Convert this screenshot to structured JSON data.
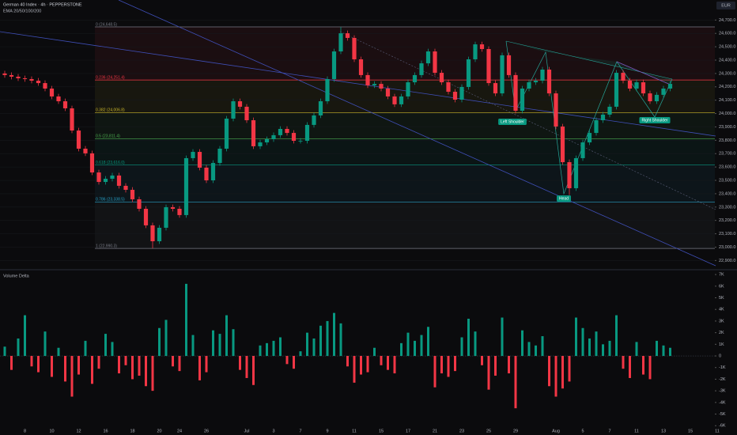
{
  "chart_data": [
    {
      "type": "candlestick",
      "title": "German 40 Index · 4h · PEPPERSTONE",
      "subtitle": "EMA 20/50/100/200",
      "currency": "EUR",
      "up_color": "#089981",
      "down_color": "#f23645",
      "grid": true,
      "ylim": [
        22837,
        24850
      ],
      "yticks": [
        {
          "value": 24700,
          "label": "24,700.0"
        },
        {
          "value": 24600,
          "label": "24,600.0"
        },
        {
          "value": 24500,
          "label": "24,500.0"
        },
        {
          "value": 24400,
          "label": "24,400.0"
        },
        {
          "value": 24300,
          "label": "24,300.0"
        },
        {
          "value": 24200,
          "label": "24,200.0"
        },
        {
          "value": 24100,
          "label": "24,100.0"
        },
        {
          "value": 24000,
          "label": "24,000.0"
        },
        {
          "value": 23900,
          "label": "23,900.0"
        },
        {
          "value": 23800,
          "label": "23,800.0"
        },
        {
          "value": 23700,
          "label": "23,700.0"
        },
        {
          "value": 23600,
          "label": "23,600.0"
        },
        {
          "value": 23500,
          "label": "23,500.0"
        },
        {
          "value": 23400,
          "label": "23,400.0"
        },
        {
          "value": 23300,
          "label": "23,300.0"
        },
        {
          "value": 23200,
          "label": "23,200.0"
        },
        {
          "value": 23100,
          "label": "23,100.0"
        },
        {
          "value": 23000,
          "label": "23,000.0"
        },
        {
          "value": 22900,
          "label": "22,900.0"
        }
      ],
      "fib_levels": [
        {
          "label": "0 (24,648.5)",
          "value": 24648.5,
          "color": "#787b86"
        },
        {
          "label": "0.236 (24,251.4)",
          "value": 24251.4,
          "color": "#f23645"
        },
        {
          "label": "0.382 (24,006.8)",
          "value": 24006.8,
          "color": "#c9b52a"
        },
        {
          "label": "0.5 (23,811.4)",
          "value": 23811.4,
          "color": "#4caf50"
        },
        {
          "label": "0.618 (23,616.0)",
          "value": 23616.0,
          "color": "#089981"
        },
        {
          "label": "0.786 (23,338.5)",
          "value": 23338.5,
          "color": "#26a0c6"
        },
        {
          "label": "1 (22,990.3)",
          "value": 22990.3,
          "color": "#787b86"
        }
      ],
      "annotations": [
        "Left Shoulder",
        "Head",
        "Right Shoulder"
      ],
      "categories": [
        null,
        null,
        null,
        "8",
        null,
        null,
        null,
        "10",
        null,
        null,
        null,
        "12",
        null,
        null,
        null,
        "16",
        null,
        null,
        null,
        "18",
        null,
        null,
        null,
        "20",
        null,
        null,
        "24",
        null,
        null,
        null,
        "26",
        null,
        null,
        null,
        null,
        null,
        "Jul",
        null,
        null,
        null,
        "3",
        null,
        null,
        null,
        "7",
        null,
        null,
        null,
        "9",
        null,
        null,
        null,
        "11",
        null,
        null,
        null,
        "15",
        null,
        null,
        null,
        "17",
        null,
        null,
        null,
        "21",
        null,
        null,
        null,
        "23",
        null,
        null,
        null,
        "25",
        null,
        null,
        null,
        "29",
        null,
        null,
        null,
        null,
        null,
        "Aug",
        null,
        null,
        null,
        "5",
        null,
        null,
        null,
        "7",
        null,
        null,
        null,
        "11",
        null,
        null,
        null,
        "13",
        null,
        null,
        null,
        "15",
        null,
        null,
        null,
        "11"
      ],
      "open": [
        24300,
        24288,
        24276,
        24264,
        24258,
        24246,
        24228,
        24187,
        24128,
        24092,
        24039,
        23873,
        23737,
        23702,
        23559,
        23488,
        23512,
        23536,
        23459,
        23429,
        23358,
        23287,
        23163,
        23044,
        23145,
        23299,
        23287,
        23240,
        23666,
        23713,
        23595,
        23500,
        23630,
        23737,
        23962,
        24092,
        24051,
        23950,
        23755,
        23784,
        23808,
        23838,
        23885,
        23855,
        23796,
        23796,
        23915,
        23986,
        24092,
        24258,
        24465,
        24601,
        24566,
        24406,
        24288,
        24211,
        24222,
        24187,
        24128,
        24069,
        24128,
        24234,
        24288,
        24376,
        24465,
        24305,
        24234,
        24163,
        24104,
        24199,
        24406,
        24518,
        24483,
        24228,
        24151,
        24436,
        24288,
        24021,
        24187,
        24234,
        24246,
        24329,
        24151,
        23903,
        23636,
        23441,
        23666,
        23784,
        23855,
        23950,
        23992,
        24051,
        24305,
        24246,
        24187,
        24234,
        24151,
        24092,
        24140,
        24187,
        null,
        null,
        null,
        null,
        null,
        null,
        null
      ],
      "high": [
        24320,
        24308,
        24296,
        24284,
        24278,
        24266,
        24248,
        24207,
        24148,
        24112,
        24059,
        23893,
        23757,
        23722,
        23579,
        23532,
        23556,
        23556,
        23479,
        23449,
        23378,
        23307,
        23183,
        23165,
        23319,
        23319,
        23307,
        23686,
        23733,
        23733,
        23615,
        23650,
        23757,
        23982,
        24112,
        24112,
        24071,
        23970,
        23804,
        23828,
        23858,
        23905,
        23905,
        23875,
        23816,
        23935,
        24006,
        24112,
        24278,
        24485,
        24648,
        24621,
        24586,
        24426,
        24308,
        24242,
        24242,
        24207,
        24148,
        24148,
        24254,
        24308,
        24396,
        24485,
        24485,
        24325,
        24254,
        24183,
        24219,
        24426,
        24538,
        24538,
        24503,
        24248,
        24456,
        24456,
        24308,
        24207,
        24254,
        24266,
        24349,
        24349,
        24171,
        23923,
        23656,
        23686,
        23804,
        23875,
        23970,
        24012,
        24071,
        24325,
        24325,
        24266,
        24254,
        24254,
        24171,
        24160,
        24207,
        24242,
        null,
        null,
        null,
        null,
        null,
        null,
        null
      ],
      "low": [
        24268,
        24256,
        24244,
        24238,
        24226,
        24208,
        24167,
        24108,
        24072,
        24019,
        23853,
        23717,
        23682,
        23539,
        23468,
        23468,
        23492,
        23439,
        23409,
        23338,
        23267,
        23143,
        22992,
        23024,
        23125,
        23267,
        23220,
        23220,
        23646,
        23575,
        23480,
        23480,
        23610,
        23717,
        23942,
        24031,
        23930,
        23735,
        23735,
        23764,
        23788,
        23818,
        23835,
        23776,
        23776,
        23776,
        23895,
        23966,
        24072,
        24238,
        24445,
        24546,
        24386,
        24268,
        24191,
        24191,
        24167,
        24108,
        24049,
        24049,
        24108,
        24214,
        24268,
        24356,
        24285,
        24214,
        24143,
        24084,
        24084,
        24179,
        24386,
        24463,
        24208,
        24131,
        24131,
        24268,
        24001,
        24001,
        24167,
        24214,
        24226,
        24131,
        23883,
        23616,
        23390,
        23421,
        23646,
        23764,
        23835,
        23930,
        23972,
        24031,
        24226,
        24167,
        24167,
        24131,
        24072,
        24072,
        24120,
        24167,
        null,
        null,
        null,
        null,
        null,
        null,
        null
      ],
      "close": [
        24288,
        24276,
        24264,
        24258,
        24246,
        24228,
        24187,
        24128,
        24092,
        24039,
        23873,
        23737,
        23702,
        23559,
        23488,
        23512,
        23536,
        23459,
        23429,
        23358,
        23287,
        23163,
        23044,
        23145,
        23299,
        23287,
        23240,
        23666,
        23713,
        23595,
        23500,
        23630,
        23737,
        23962,
        24092,
        24051,
        23950,
        23755,
        23784,
        23808,
        23838,
        23885,
        23855,
        23796,
        23796,
        23915,
        23986,
        24092,
        24258,
        24465,
        24601,
        24566,
        24406,
        24288,
        24211,
        24222,
        24187,
        24128,
        24069,
        24128,
        24234,
        24288,
        24376,
        24465,
        24305,
        24234,
        24163,
        24104,
        24199,
        24406,
        24518,
        24483,
        24228,
        24151,
        24436,
        24288,
        24021,
        24187,
        24234,
        24246,
        24329,
        24151,
        23903,
        23636,
        23441,
        23666,
        23784,
        23855,
        23950,
        23992,
        24051,
        24305,
        24246,
        24187,
        24234,
        24151,
        24092,
        24140,
        24187,
        24222,
        null,
        null,
        null,
        null,
        null,
        null,
        null
      ]
    },
    {
      "type": "bar",
      "title": "Volume Delta",
      "up_color": "#089981",
      "down_color": "#f23645",
      "ylim": [
        -6800,
        7280
      ],
      "yticks": [
        {
          "value": 7000,
          "label": "7K"
        },
        {
          "value": 6000,
          "label": "6K"
        },
        {
          "value": 5000,
          "label": "5K"
        },
        {
          "value": 4000,
          "label": "4K"
        },
        {
          "value": 3000,
          "label": "3K"
        },
        {
          "value": 2000,
          "label": "2K"
        },
        {
          "value": 1000,
          "label": "1K"
        },
        0,
        {
          "value": -1000,
          "label": "-1K"
        },
        {
          "value": -2000,
          "label": "-2K"
        },
        {
          "value": -3000,
          "label": "-3K"
        },
        {
          "value": -4000,
          "label": "-4K"
        },
        {
          "value": -5000,
          "label": "-5K"
        },
        {
          "value": -6000,
          "label": "-6K"
        }
      ],
      "values": [
        800,
        -1200,
        1500,
        3500,
        -900,
        -1400,
        2100,
        -1800,
        700,
        -2200,
        -3500,
        -1600,
        1300,
        -2400,
        -1100,
        1900,
        1200,
        -1500,
        -800,
        -2000,
        -1700,
        -2600,
        -3000,
        2400,
        3100,
        -900,
        -1300,
        6200,
        1800,
        -2100,
        -1400,
        2200,
        1900,
        3500,
        2300,
        -1200,
        -1900,
        -2500,
        900,
        1100,
        1300,
        1600,
        -700,
        -1100,
        400,
        2000,
        1500,
        2600,
        3000,
        3700,
        2800,
        -900,
        -2300,
        -1600,
        -1400,
        700,
        -800,
        -1200,
        -1500,
        1100,
        2000,
        1300,
        1800,
        2500,
        -2700,
        -1500,
        -1800,
        -1300,
        1600,
        3200,
        2100,
        -800,
        -2900,
        -1700,
        3300,
        -1500,
        -4500,
        2200,
        1200,
        900,
        1700,
        -2600,
        -3500,
        -2800,
        -2200,
        3300,
        2400,
        1500,
        2100,
        1000,
        1300,
        3500,
        -1100,
        -1900,
        1200,
        -1600,
        -2000,
        1300,
        900,
        700,
        null,
        null,
        null,
        null,
        null,
        null,
        null
      ]
    }
  ]
}
